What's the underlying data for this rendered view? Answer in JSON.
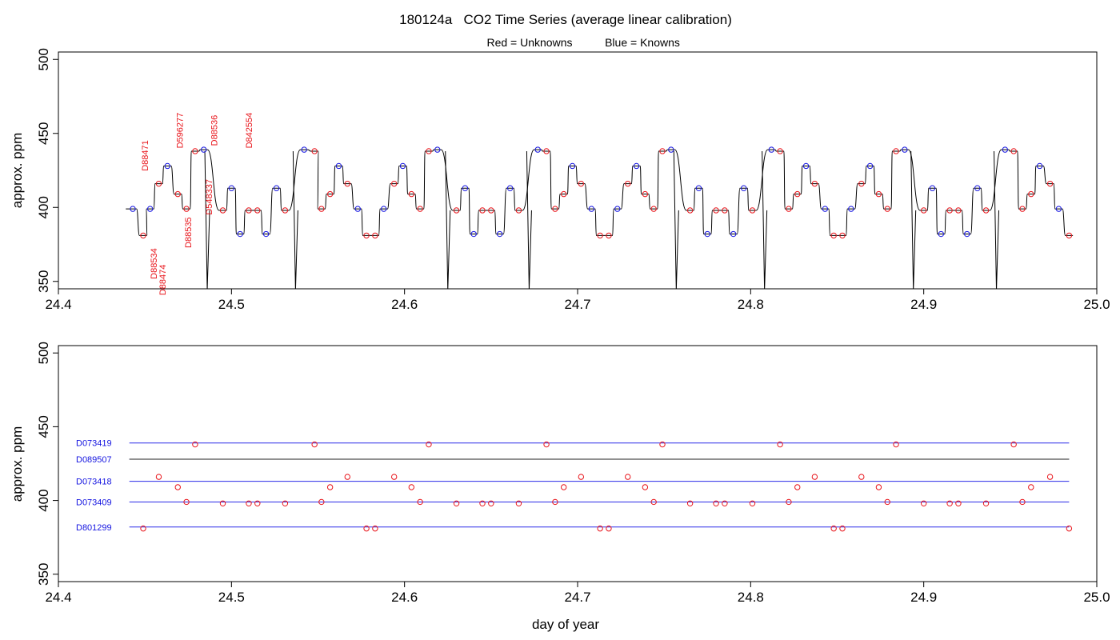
{
  "colors": {
    "unknown": "#e8141a",
    "known": "#1414e0",
    "line": "#000000",
    "ref": "#2a2ae8"
  },
  "chart_data": [
    {
      "type": "line",
      "title": "180124a   CO2 Time Series (average linear calibration)",
      "legend": {
        "unknowns_label": "Red = Unknowns",
        "knowns_label": "Blue = Knowns",
        "placement": "top-center"
      },
      "xlabel": "",
      "ylabel": "approx. ppm",
      "xlim": [
        24.4,
        25.0
      ],
      "ylim": [
        345,
        505
      ],
      "xticks": [
        24.4,
        24.5,
        24.6,
        24.7,
        24.8,
        24.9,
        25.0
      ],
      "xtick_labels": [
        "24.4",
        "24.5",
        "24.6",
        "24.7",
        "24.8",
        "24.9",
        "25.0"
      ],
      "yticks": [
        350,
        400,
        450,
        500
      ],
      "ytick_labels": [
        "350",
        "400",
        "450",
        "500"
      ],
      "series": [
        {
          "name": "Red = Unknowns",
          "points": [
            [
              24.449,
              381
            ],
            [
              24.458,
              416
            ],
            [
              24.469,
              409
            ],
            [
              24.474,
              399
            ],
            [
              24.479,
              438
            ],
            [
              24.495,
              398
            ],
            [
              24.51,
              398
            ],
            [
              24.515,
              398
            ],
            [
              24.531,
              398
            ],
            [
              24.548,
              438
            ],
            [
              24.552,
              399
            ],
            [
              24.557,
              409
            ],
            [
              24.567,
              416
            ],
            [
              24.578,
              381
            ],
            [
              24.583,
              381
            ],
            [
              24.594,
              416
            ],
            [
              24.604,
              409
            ],
            [
              24.609,
              399
            ],
            [
              24.614,
              438
            ],
            [
              24.63,
              398
            ],
            [
              24.645,
              398
            ],
            [
              24.65,
              398
            ],
            [
              24.666,
              398
            ],
            [
              24.682,
              438
            ],
            [
              24.687,
              399
            ],
            [
              24.692,
              409
            ],
            [
              24.702,
              416
            ],
            [
              24.713,
              381
            ],
            [
              24.718,
              381
            ],
            [
              24.729,
              416
            ],
            [
              24.739,
              409
            ],
            [
              24.744,
              399
            ],
            [
              24.749,
              438
            ],
            [
              24.765,
              398
            ],
            [
              24.78,
              398
            ],
            [
              24.785,
              398
            ],
            [
              24.801,
              398
            ],
            [
              24.817,
              438
            ],
            [
              24.822,
              399
            ],
            [
              24.827,
              409
            ],
            [
              24.837,
              416
            ],
            [
              24.848,
              381
            ],
            [
              24.853,
              381
            ],
            [
              24.864,
              416
            ],
            [
              24.874,
              409
            ],
            [
              24.879,
              399
            ],
            [
              24.884,
              438
            ],
            [
              24.9,
              398
            ],
            [
              24.915,
              398
            ],
            [
              24.92,
              398
            ],
            [
              24.936,
              398
            ],
            [
              24.952,
              438
            ],
            [
              24.957,
              399
            ],
            [
              24.962,
              409
            ],
            [
              24.973,
              416
            ],
            [
              24.984,
              381
            ]
          ]
        },
        {
          "name": "Blue = Knowns",
          "points": [
            [
              24.443,
              399
            ],
            [
              24.453,
              399
            ],
            [
              24.463,
              428
            ],
            [
              24.484,
              439
            ],
            [
              24.5,
              413
            ],
            [
              24.505,
              382
            ],
            [
              24.52,
              382
            ],
            [
              24.526,
              413
            ],
            [
              24.542,
              439
            ],
            [
              24.562,
              428
            ],
            [
              24.573,
              399
            ],
            [
              24.588,
              399
            ],
            [
              24.599,
              428
            ],
            [
              24.619,
              439
            ],
            [
              24.635,
              413
            ],
            [
              24.64,
              382
            ],
            [
              24.655,
              382
            ],
            [
              24.661,
              413
            ],
            [
              24.677,
              439
            ],
            [
              24.697,
              428
            ],
            [
              24.708,
              399
            ],
            [
              24.723,
              399
            ],
            [
              24.734,
              428
            ],
            [
              24.754,
              439
            ],
            [
              24.77,
              413
            ],
            [
              24.775,
              382
            ],
            [
              24.79,
              382
            ],
            [
              24.796,
              413
            ],
            [
              24.812,
              439
            ],
            [
              24.832,
              428
            ],
            [
              24.843,
              399
            ],
            [
              24.858,
              399
            ],
            [
              24.869,
              428
            ],
            [
              24.889,
              439
            ],
            [
              24.905,
              413
            ],
            [
              24.91,
              382
            ],
            [
              24.925,
              382
            ],
            [
              24.931,
              413
            ],
            [
              24.947,
              439
            ],
            [
              24.967,
              428
            ],
            [
              24.978,
              399
            ]
          ]
        }
      ],
      "annotations": [
        {
          "text": "D88471",
          "x": 24.45,
          "y": 435
        },
        {
          "text": "D88534",
          "x": 24.455,
          "y": 362
        },
        {
          "text": "D88474",
          "x": 24.46,
          "y": 351
        },
        {
          "text": "D596277",
          "x": 24.47,
          "y": 452
        },
        {
          "text": "D88535",
          "x": 24.475,
          "y": 383
        },
        {
          "text": "D548337",
          "x": 24.487,
          "y": 407
        },
        {
          "text": "D88536",
          "x": 24.49,
          "y": 452
        },
        {
          "text": "D842554",
          "x": 24.51,
          "y": 452
        }
      ]
    },
    {
      "type": "scatter",
      "xlabel": "day of year",
      "ylabel": "approx. ppm",
      "xlim": [
        24.4,
        25.0
      ],
      "ylim": [
        345,
        505
      ],
      "xticks": [
        24.4,
        24.5,
        24.6,
        24.7,
        24.8,
        24.9,
        25.0
      ],
      "xtick_labels": [
        "24.4",
        "24.5",
        "24.6",
        "24.7",
        "24.8",
        "24.9",
        "25.0"
      ],
      "yticks": [
        350,
        400,
        450,
        500
      ],
      "ytick_labels": [
        "350",
        "400",
        "450",
        "500"
      ],
      "reference_lines": [
        {
          "name": "D073419",
          "y": 439,
          "x_range": [
            24.441,
            24.984
          ]
        },
        {
          "name": "D089507",
          "y": 428,
          "x_range": [
            24.441,
            24.984
          ]
        },
        {
          "name": "D073418",
          "y": 413,
          "x_range": [
            24.441,
            24.984
          ]
        },
        {
          "name": "D073409",
          "y": 399,
          "x_range": [
            24.441,
            24.984
          ]
        },
        {
          "name": "D801299",
          "y": 382,
          "x_range": [
            24.441,
            24.984
          ]
        }
      ],
      "series": [
        {
          "name": "Red = Unknowns",
          "same_as_top_unknowns": true
        }
      ]
    }
  ]
}
